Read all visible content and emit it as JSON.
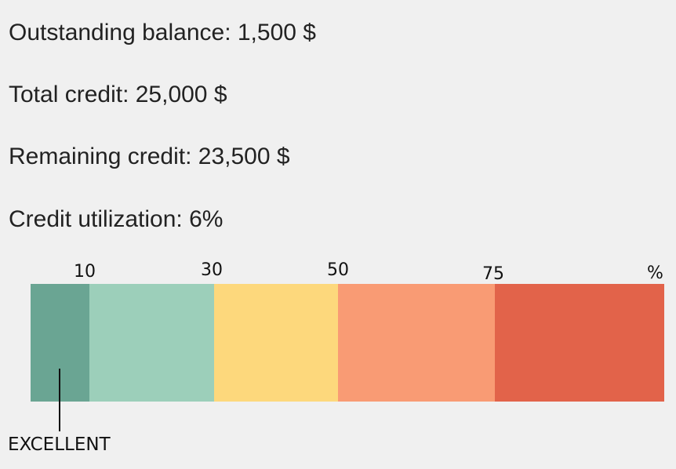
{
  "stats": {
    "outstanding_balance": "Outstanding balance: 1,500 $",
    "total_credit": "Total credit: 25,000 $",
    "remaining_credit": "Remaining credit: 23,500 $",
    "credit_utilization": "Credit utilization: 6%"
  },
  "scale": {
    "ticks": [
      "10",
      "30",
      "50",
      "75",
      "%"
    ],
    "segments": [
      {
        "from": 0,
        "to": 10,
        "color": "#6aa593"
      },
      {
        "from": 10,
        "to": 30,
        "color": "#9ccfba"
      },
      {
        "from": 30,
        "to": 50,
        "color": "#fdd87c"
      },
      {
        "from": 50,
        "to": 75,
        "color": "#f99b74"
      },
      {
        "from": 75,
        "to": 100,
        "color": "#e2634a"
      }
    ],
    "marker": {
      "label": "EXCELLENT",
      "value": 6
    }
  }
}
